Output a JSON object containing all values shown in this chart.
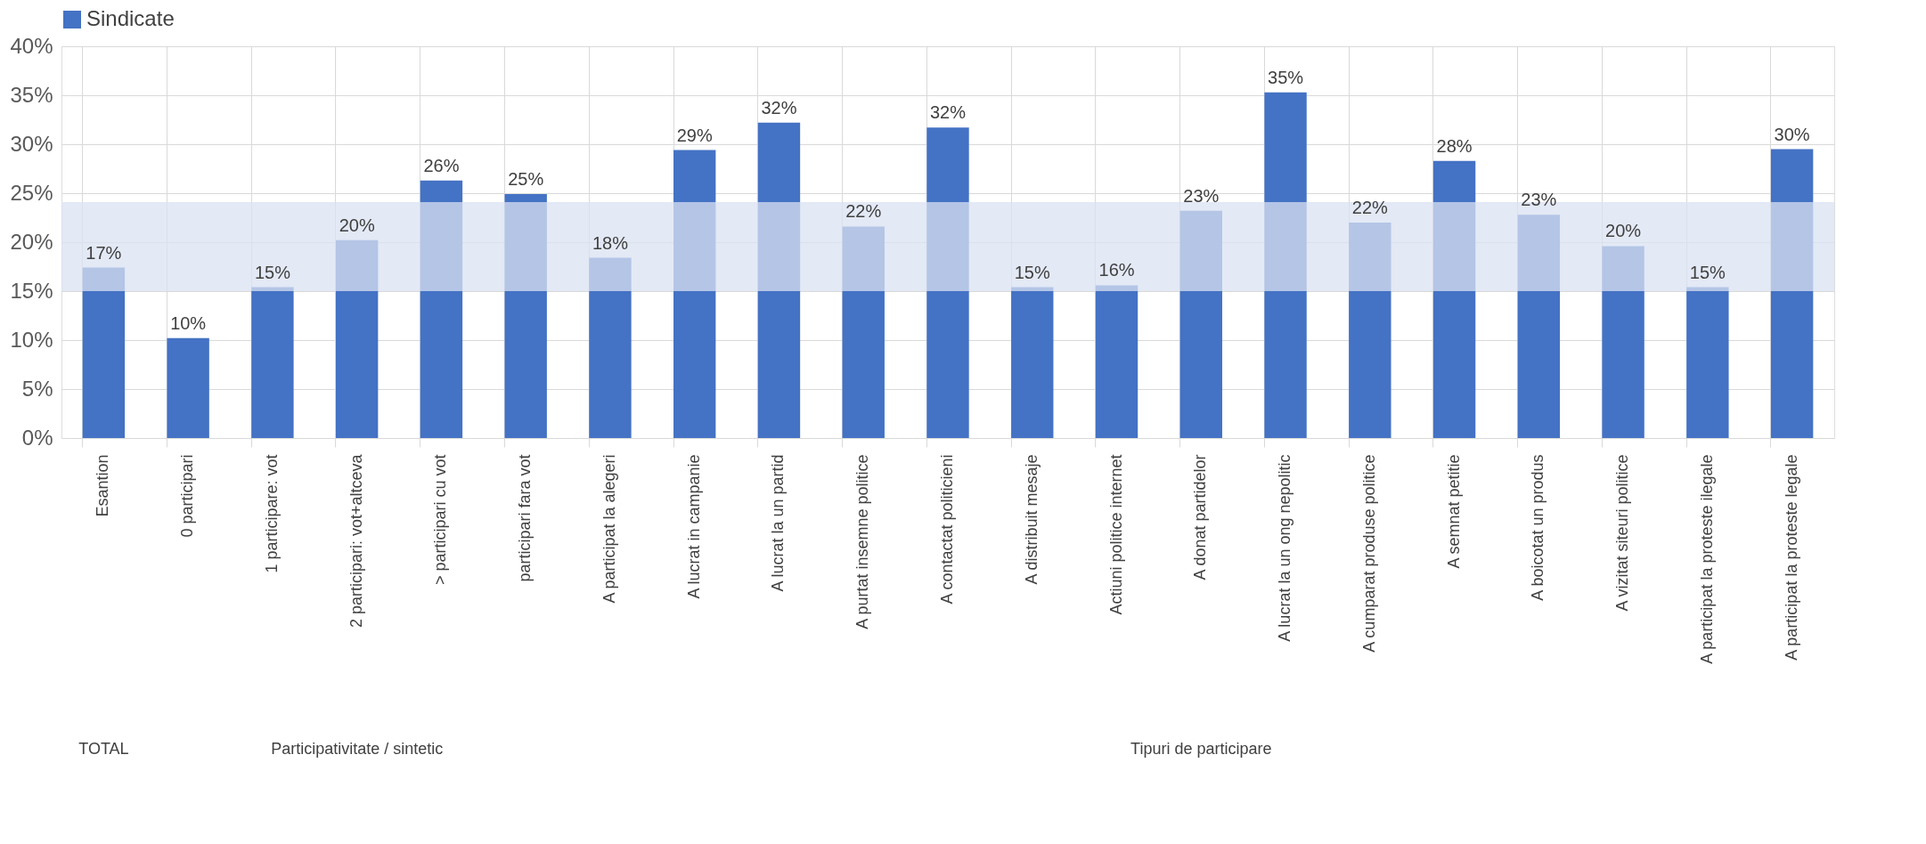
{
  "chart_data": {
    "type": "bar",
    "categories": [
      "Esantion",
      "0 participari",
      "1 participare: vot",
      "2 participari: vot+altceva",
      "> participari cu vot",
      "participari fara vot",
      "A participat la alegeri",
      "A lucrat in campanie",
      "A lucrat la un partid",
      "A purtat insemne politice",
      "A contactat politicieni",
      "A distribuit mesaje",
      "Actiuni politice internet",
      "A donat partidelor",
      "A lucrat la un ong nepolitic",
      "A cumparat produse politice",
      "A semnat petitie",
      "A boicotat un produs",
      "A vizitat siteuri politice",
      "A participat la proteste ilegale",
      "A participat la proteste legale"
    ],
    "series": [
      {
        "name": "Sindicate",
        "color": "#4472c4",
        "values": [
          17.4,
          10.2,
          15.4,
          20.2,
          26.3,
          24.9,
          18.4,
          29.4,
          32.2,
          21.6,
          31.7,
          15.4,
          15.6,
          23.2,
          35.3,
          22.0,
          28.3,
          22.8,
          19.6,
          15.4,
          29.5
        ],
        "value_labels": [
          "17%",
          "10%",
          "15%",
          "20%",
          "26%",
          "25%",
          "18%",
          "29%",
          "32%",
          "22%",
          "32%",
          "15%",
          "16%",
          "23%",
          "35%",
          "22%",
          "28%",
          "23%",
          "20%",
          "15%",
          "30%"
        ]
      }
    ],
    "ylim": [
      0,
      40
    ],
    "yticks": [
      {
        "value": 0,
        "label": "0%"
      },
      {
        "value": 5,
        "label": "5%"
      },
      {
        "value": 10,
        "label": "10%"
      },
      {
        "value": 15,
        "label": "15%"
      },
      {
        "value": 20,
        "label": "20%"
      },
      {
        "value": 25,
        "label": "25%"
      },
      {
        "value": 30,
        "label": "30%"
      },
      {
        "value": 35,
        "label": "35%"
      },
      {
        "value": 40,
        "label": "40%"
      }
    ],
    "bands": [
      {
        "axis": "y",
        "from": 15,
        "to": 24.1,
        "color": "#d9e1f2"
      }
    ],
    "annotations": [
      "TOTAL",
      "Participativitate / sintetic",
      "Tipuri de participare"
    ],
    "grid": true,
    "legend": "top"
  }
}
